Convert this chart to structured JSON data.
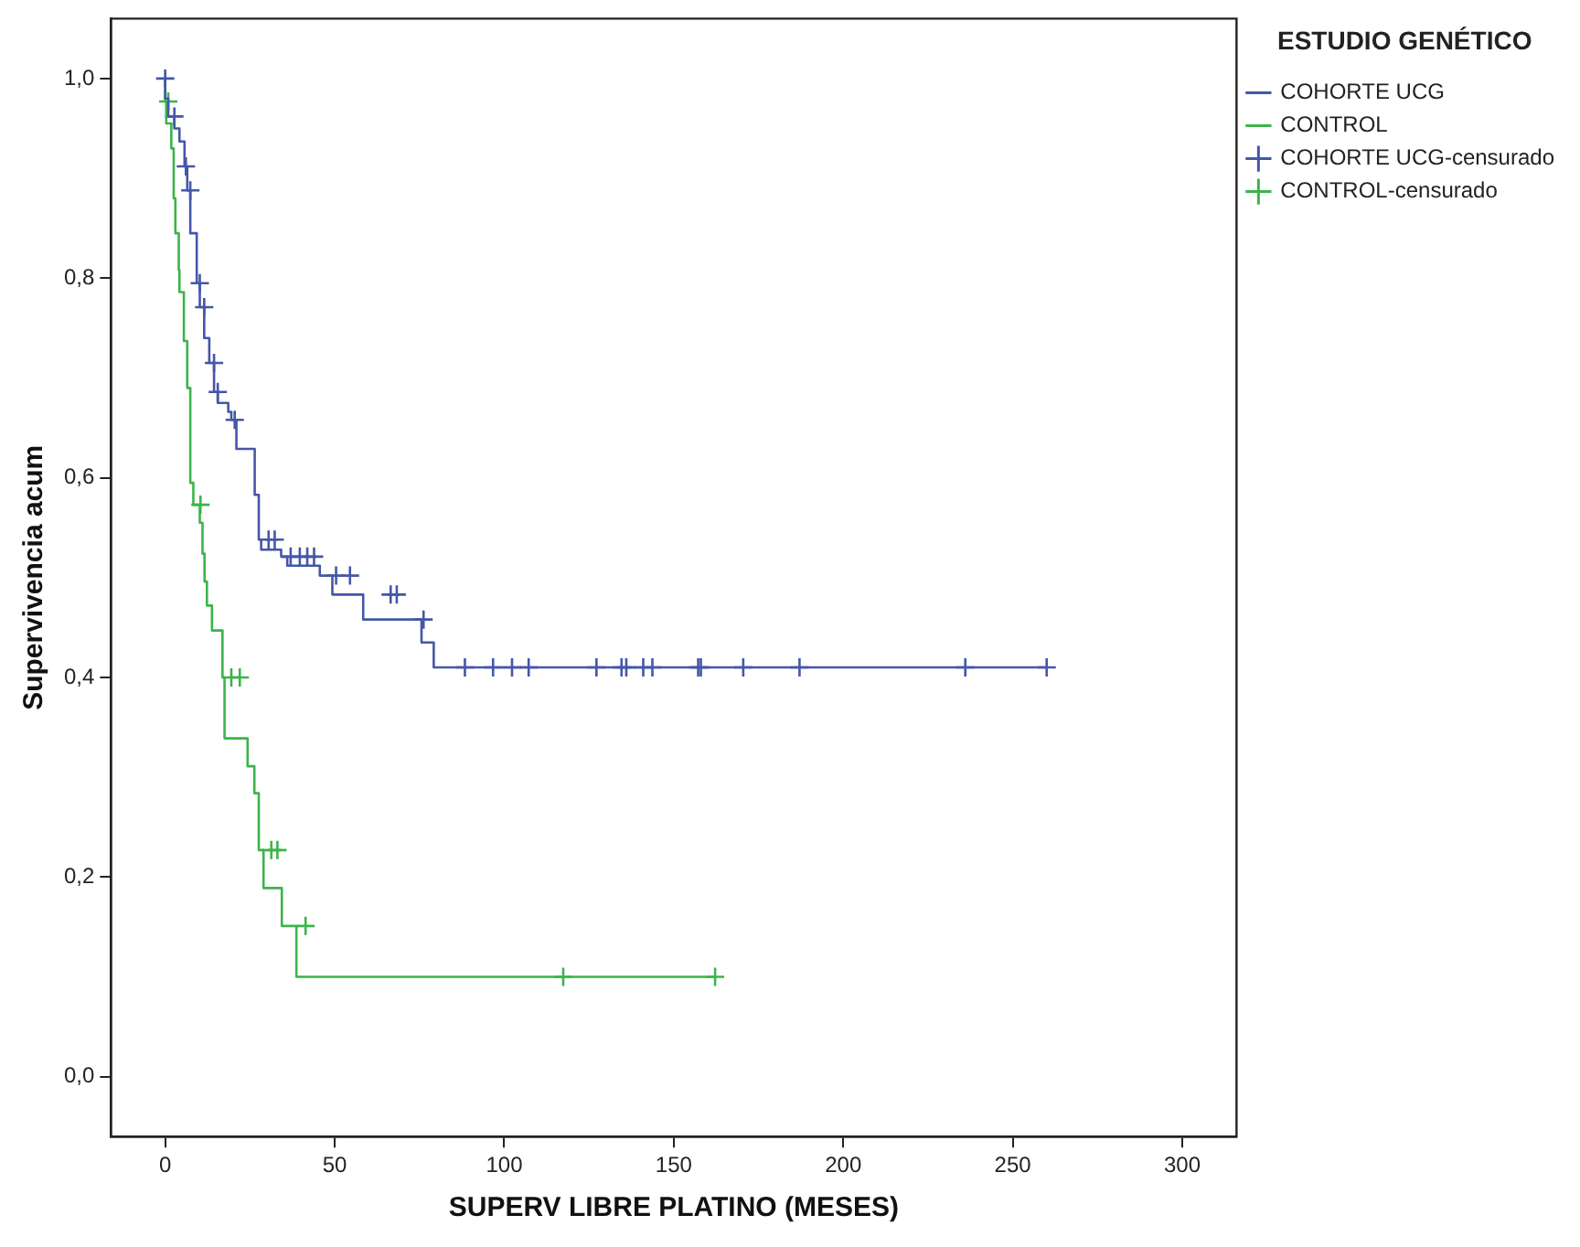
{
  "chart_data": {
    "type": "step",
    "xlabel": "SUPERV LIBRE PLATINO (MESES)",
    "ylabel": "Supervivencia acum",
    "legend_title": "ESTUDIO GENÉTICO",
    "legend": "top right",
    "grid": false,
    "xlim": [
      -16,
      316
    ],
    "xticks": [
      0,
      50,
      100,
      150,
      200,
      250,
      300
    ],
    "ylim": [
      -0.06,
      1.06
    ],
    "yticks": [
      {
        "value": 0,
        "label": "0,0"
      },
      {
        "value": 0.2,
        "label": "0,2"
      },
      {
        "value": 0.4,
        "label": "0,4"
      },
      {
        "value": 0.6,
        "label": "0,6"
      },
      {
        "value": 0.8,
        "label": "0,8"
      },
      {
        "value": 1,
        "label": "1,0"
      }
    ],
    "series": [
      {
        "name": "COHORTE UCG",
        "type": "step",
        "color": "#4457a8",
        "marker": "none",
        "line_style": "solid",
        "x": [
          0,
          0.9,
          2.7,
          4.2,
          5.7,
          6.5,
          7.4,
          9.3,
          10.2,
          11.5,
          13,
          14.4,
          15.5,
          18.6,
          19.5,
          21,
          26.4,
          27.6,
          28.3,
          34.2,
          36,
          45.6,
          49.3,
          58.4,
          75.6,
          79.2,
          86,
          260
        ],
        "values": [
          1,
          0.98,
          0.962,
          0.95,
          0.937,
          0.912,
          0.888,
          0.845,
          0.795,
          0.771,
          0.74,
          0.715,
          0.686,
          0.675,
          0.666,
          0.658,
          0.629,
          0.583,
          0.538,
          0.528,
          0.521,
          0.512,
          0.502,
          0.483,
          0.458,
          0.435,
          0.41,
          0.41
        ]
      },
      {
        "name": "CONTROL",
        "type": "step",
        "color": "#3cb44a",
        "marker": "none",
        "line_style": "solid",
        "x": [
          0,
          0.3,
          1.8,
          2.5,
          3,
          4,
          4.2,
          5.5,
          6.5,
          7.4,
          8.3,
          10.2,
          11,
          11.6,
          12.3,
          13.8,
          16.9,
          17.5,
          24.3,
          26.3,
          27.6,
          29,
          34.4,
          38.7,
          98,
          162.2
        ],
        "values": [
          1,
          0.977,
          0.955,
          0.93,
          0.88,
          0.845,
          0.808,
          0.786,
          0.737,
          0.69,
          0.595,
          0.573,
          0.555,
          0.524,
          0.496,
          0.472,
          0.447,
          0.4,
          0.339,
          0.311,
          0.284,
          0.227,
          0.189,
          0.151,
          0.1,
          0.1
        ]
      },
      {
        "name": "COHORTE UCG-censurado",
        "type": "scatter",
        "color": "#4457a8",
        "marker": "cross",
        "x": [
          0,
          2.7,
          6.1,
          7.4,
          10.2,
          11.5,
          14.4,
          15.5,
          20.5,
          30.5,
          32.3,
          37,
          39.7,
          41.9,
          43.9,
          50.4,
          54.5,
          66.5,
          68.3,
          76.2,
          88.4,
          96.7,
          102.3,
          107.2,
          127.2,
          134.6,
          136,
          141,
          143.7,
          157.2,
          158,
          170.5,
          187.1,
          236,
          260
        ],
        "values": [
          1,
          0.962,
          0.912,
          0.888,
          0.795,
          0.771,
          0.715,
          0.686,
          0.658,
          0.538,
          0.538,
          0.521,
          0.521,
          0.521,
          0.521,
          0.502,
          0.502,
          0.483,
          0.483,
          0.458,
          0.41,
          0.41,
          0.41,
          0.41,
          0.41,
          0.41,
          0.41,
          0.41,
          0.41,
          0.41,
          0.41,
          0.41,
          0.41,
          0.41,
          0.41
        ]
      },
      {
        "name": "CONTROL-censurado",
        "type": "scatter",
        "color": "#3cb44a",
        "marker": "cross",
        "x": [
          0.9,
          10.4,
          19.5,
          22,
          31.3,
          33.1,
          41.4,
          117.4,
          162.2
        ],
        "values": [
          0.977,
          0.573,
          0.4,
          0.4,
          0.227,
          0.227,
          0.151,
          0.1,
          0.1
        ]
      }
    ]
  }
}
